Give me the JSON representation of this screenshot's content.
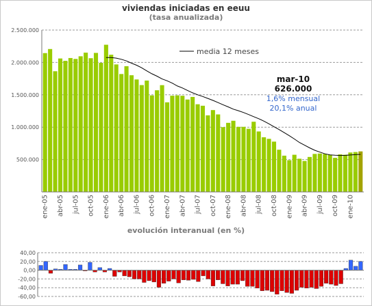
{
  "title": "viviendas iniciadas en eeuu",
  "subtitle": "(tasa anualizada)",
  "chart_data": [
    {
      "type": "bar",
      "title": "viviendas iniciadas en eeuu",
      "subtitle": "(tasa anualizada)",
      "ylim": [
        0,
        2500000
      ],
      "y_ticks": [
        "500.000",
        "1.000.000",
        "1.500.000",
        "2.000.000",
        "2.500.000"
      ],
      "y_tick_values": [
        500000,
        1000000,
        1500000,
        2000000,
        2500000
      ],
      "x_tick_labels": [
        "ene-05",
        "abr-05",
        "jul-05",
        "oct-05",
        "ene-06",
        "abr-06",
        "jul-06",
        "oct-06",
        "ene-07",
        "abr-07",
        "jul-07",
        "oct-07",
        "ene-08",
        "abr-08",
        "jul-08",
        "oct-08",
        "ene-09",
        "abr-09",
        "jul-09",
        "oct-09",
        "ene-10"
      ],
      "series": [
        {
          "values": [
            2144000,
            2207000,
            1864000,
            2061000,
            2025000,
            2068000,
            2054000,
            2095000,
            2151000,
            2065000,
            2147000,
            1994000,
            2273000,
            2119000,
            1969000,
            1821000,
            1942000,
            1802000,
            1737000,
            1650000,
            1720000,
            1491000,
            1570000,
            1649000,
            1384000,
            1486000,
            1491000,
            1485000,
            1427000,
            1467000,
            1354000,
            1331000,
            1183000,
            1264000,
            1197000,
            1000000,
            1067000,
            1099000,
            1005000,
            1005000,
            975000,
            1084000,
            934000,
            844000,
            820000,
            777000,
            652000,
            560000,
            490000,
            574000,
            513000,
            478000,
            540000,
            587000,
            593000,
            586000,
            575000,
            527000,
            580000,
            574000,
            609000,
            616000,
            626000
          ]
        },
        {
          "name": "media 12 meses",
          "type": "line",
          "values": [
            2075000,
            2076000,
            2066000,
            2048000,
            2023000,
            1988000,
            1957000,
            1917000,
            1869000,
            1825000,
            1788000,
            1745000,
            1716000,
            1680000,
            1636000,
            1605000,
            1568000,
            1531000,
            1500000,
            1474000,
            1444000,
            1414000,
            1380000,
            1346000,
            1313000,
            1278000,
            1254000,
            1227000,
            1195000,
            1162000,
            1131000,
            1094000,
            1052000,
            1006000,
            963000,
            916000,
            868000,
            818000,
            764000,
            721000,
            680000,
            643000,
            615000,
            589000,
            573000,
            566000,
            563000,
            565000,
            571000,
            576000,
            580000
          ]
        }
      ],
      "legend": [
        "media 12 meses"
      ],
      "legend_position": "top-right",
      "grid": "horizontal-dashed",
      "annotation": {
        "label": "mar-10",
        "value": "626.000",
        "monthly": "1,6% mensual",
        "annual": "20,1% anual"
      },
      "colors": {
        "bar": "#99cc00",
        "highlight": "#a3a300",
        "line": "#000000",
        "annot_blue": "#3366cc"
      }
    },
    {
      "type": "bar",
      "title": "evolución interanual (en %)",
      "ylim": [
        -60,
        40
      ],
      "y_ticks": [
        "-60,00",
        "-40,00",
        "-20,00",
        "0,00",
        "20,00",
        "40,00"
      ],
      "y_tick_values": [
        -60,
        -40,
        -20,
        0,
        20,
        40
      ],
      "values": [
        11,
        20,
        -7,
        3,
        2,
        13,
        2,
        2,
        12,
        -1,
        18,
        -4,
        6,
        -4,
        4,
        -14,
        -4,
        -13,
        -15,
        -20,
        -20,
        -28,
        -24,
        -27,
        -39,
        -30,
        -25,
        -20,
        -29,
        -22,
        -23,
        -21,
        -26,
        -13,
        -20,
        -36,
        -22,
        -31,
        -36,
        -32,
        -32,
        -24,
        -37,
        -37,
        -41,
        -47,
        -46,
        -49,
        -55,
        -47,
        -51,
        -53,
        -46,
        -39,
        -41,
        -39,
        -42,
        -37,
        -30,
        -32,
        -35,
        -31,
        4,
        23,
        9,
        20
      ],
      "colors": {
        "positive": "#3366ff",
        "negative": "#dd0000"
      }
    }
  ]
}
